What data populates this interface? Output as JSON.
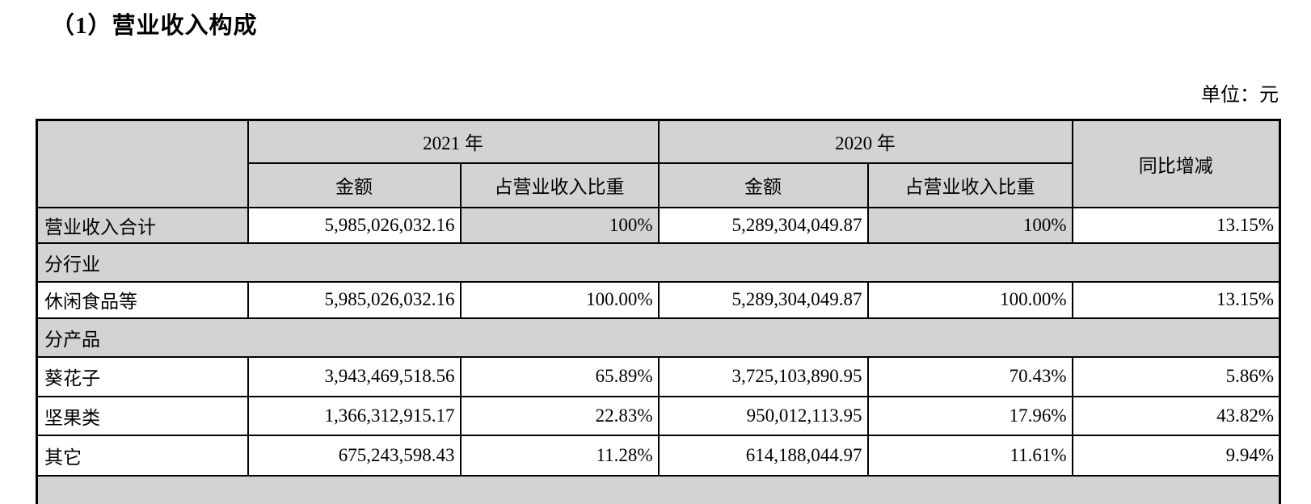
{
  "page": {
    "title": "（1）营业收入构成",
    "unit_label": "单位：元"
  },
  "table": {
    "header": {
      "year_2021": "2021 年",
      "year_2020": "2020 年",
      "amount": "金额",
      "ratio": "占营业收入比重",
      "yoy": "同比增减"
    },
    "rows": [
      {
        "type": "data",
        "shaded": true,
        "label": "营业收入合计",
        "amount_2021": "5,985,026,032.16",
        "ratio_2021": "100%",
        "amount_2020": "5,289,304,049.87",
        "ratio_2020": "100%",
        "yoy": "13.15%"
      },
      {
        "type": "section",
        "label": "分行业"
      },
      {
        "type": "data",
        "shaded": false,
        "label": "休闲食品等",
        "amount_2021": "5,985,026,032.16",
        "ratio_2021": "100.00%",
        "amount_2020": "5,289,304,049.87",
        "ratio_2020": "100.00%",
        "yoy": "13.15%"
      },
      {
        "type": "section",
        "label": "分产品"
      },
      {
        "type": "data",
        "shaded": false,
        "label": "葵花子",
        "amount_2021": "3,943,469,518.56",
        "ratio_2021": "65.89%",
        "amount_2020": "3,725,103,890.95",
        "ratio_2020": "70.43%",
        "yoy": "5.86%"
      },
      {
        "type": "data",
        "shaded": false,
        "label": "坚果类",
        "amount_2021": "1,366,312,915.17",
        "ratio_2021": "22.83%",
        "amount_2020": "950,012,113.95",
        "ratio_2020": "17.96%",
        "yoy": "43.82%"
      },
      {
        "type": "data",
        "shaded": false,
        "label": "其它",
        "amount_2021": "675,243,598.43",
        "ratio_2021": "11.28%",
        "amount_2020": "614,188,044.97",
        "ratio_2020": "11.61%",
        "yoy": "9.94%"
      },
      {
        "type": "section",
        "label": ""
      }
    ]
  }
}
